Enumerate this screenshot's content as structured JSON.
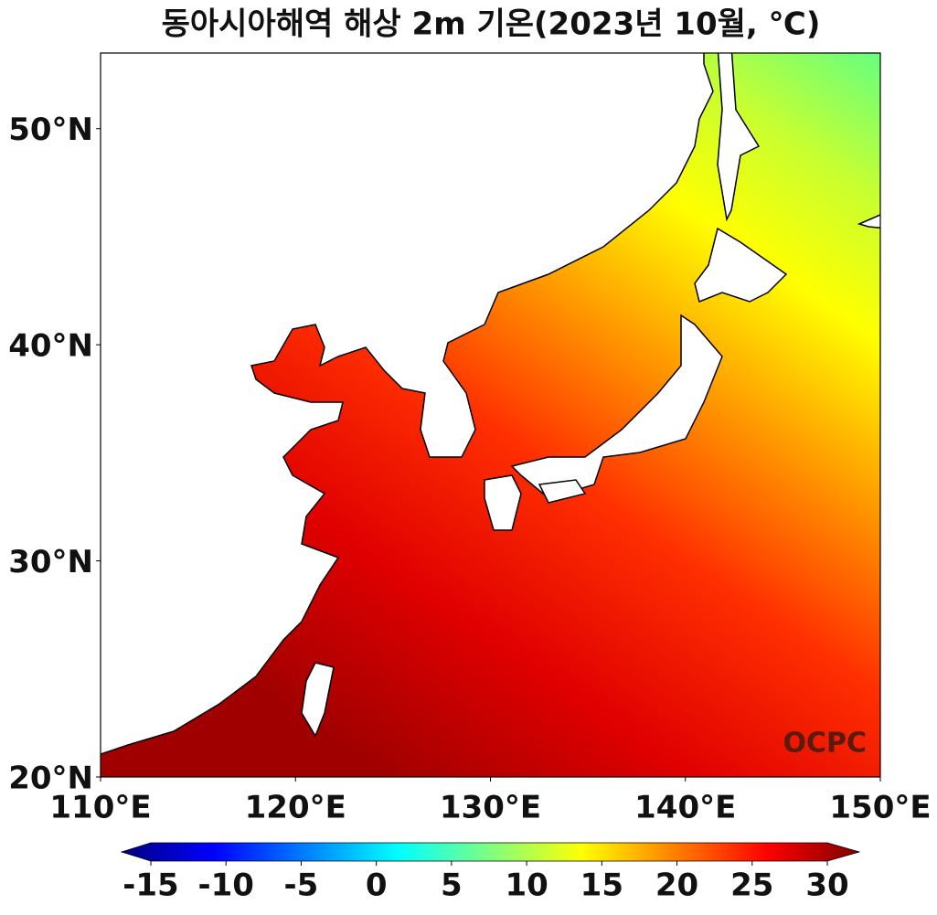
{
  "chart_data": {
    "type": "map",
    "title": "동아시아해역 해상 2m 기온(2023년 10월, ℃)",
    "xlim": [
      110,
      150
    ],
    "ylim": [
      20,
      53.5
    ],
    "xticks": [
      {
        "value": 110,
        "label": "110°E"
      },
      {
        "value": 120,
        "label": "120°E"
      },
      {
        "value": 130,
        "label": "130°E"
      },
      {
        "value": 140,
        "label": "140°E"
      },
      {
        "value": 150,
        "label": "150°E"
      }
    ],
    "yticks": [
      {
        "value": 20,
        "label": "20°N"
      },
      {
        "value": 30,
        "label": "30°N"
      },
      {
        "value": 40,
        "label": "40°N"
      },
      {
        "value": 50,
        "label": "50°N"
      }
    ],
    "colorbar": {
      "lim": [
        -15,
        30
      ],
      "ticks": [
        -15,
        -10,
        -5,
        0,
        5,
        10,
        15,
        20,
        25,
        30
      ]
    },
    "watermark": "OCPC"
  }
}
